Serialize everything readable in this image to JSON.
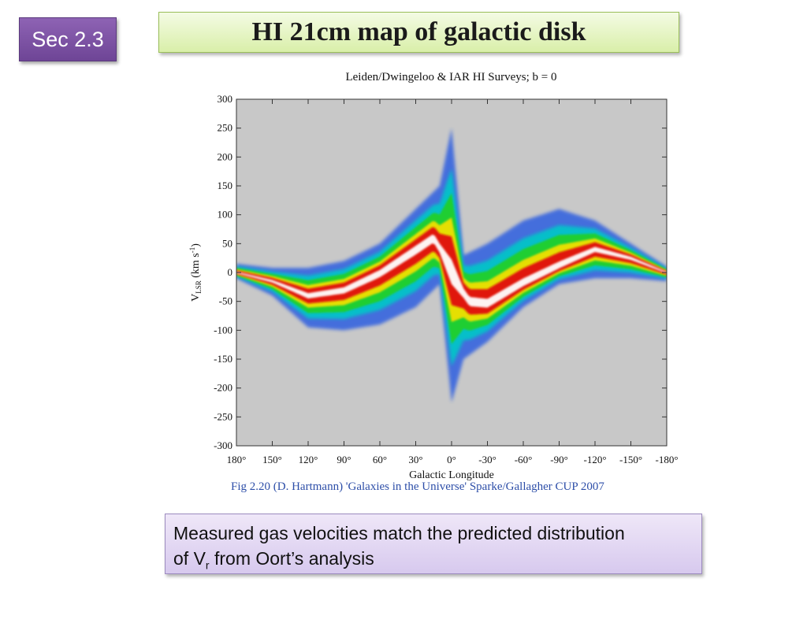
{
  "slide": {
    "section": "Sec 2.3",
    "title": "HI 21cm map of galactic disk",
    "caption": "Fig 2.20 (D. Hartmann) 'Galaxies in the Universe' Sparke/Gallagher CUP 2007",
    "note_line1": "Measured gas velocities match the predicted distribution",
    "note_line2_pre": "of V",
    "note_line2_sub": "r",
    "note_line2_post": " from Oort’s analysis"
  },
  "chart_data": {
    "type": "heatmap",
    "title": "Leiden/Dwingeloo & IAR HI Surveys;  b = 0",
    "xlabel": "Galactic Longitude",
    "ylabel_main": "V",
    "ylabel_sub": "LSR",
    "ylabel_unit": " (km s",
    "ylabel_unit_sup": "-1",
    "ylabel_unit_end": ")",
    "xlim": [
      180,
      -180
    ],
    "ylim": [
      -300,
      300
    ],
    "x_ticks": [
      180,
      150,
      120,
      90,
      60,
      30,
      0,
      -30,
      -60,
      -90,
      -120,
      -150,
      -180
    ],
    "x_tick_labels": [
      "180°",
      "150°",
      "120°",
      "90°",
      "60°",
      "30°",
      "0°",
      "-30°",
      "-60°",
      "-90°",
      "-120°",
      "-150°",
      "-180°"
    ],
    "y_ticks": [
      300,
      250,
      200,
      150,
      100,
      50,
      0,
      -50,
      -100,
      -150,
      -200,
      -250,
      -300
    ],
    "y_tick_labels": [
      "300",
      "250",
      "200",
      "150",
      "100",
      "50",
      "0",
      "-50",
      "-100",
      "-150",
      "-200",
      "-250",
      "-300"
    ],
    "background_color": "#c8c8c8",
    "colors": {
      "low": "#2f5fe0",
      "mid_low": "#00c8c8",
      "mid": "#20d020",
      "mid_high": "#f0e000",
      "high": "#e01010",
      "peak": "#ffffff"
    },
    "emission_envelope": [
      {
        "l": 180,
        "v_min": -10,
        "v_max": 15
      },
      {
        "l": 150,
        "v_min": -40,
        "v_max": 8
      },
      {
        "l": 120,
        "v_min": -95,
        "v_max": 8
      },
      {
        "l": 90,
        "v_min": -100,
        "v_max": 20
      },
      {
        "l": 60,
        "v_min": -90,
        "v_max": 50
      },
      {
        "l": 30,
        "v_min": -60,
        "v_max": 110
      },
      {
        "l": 10,
        "v_min": -20,
        "v_max": 150
      },
      {
        "l": 0,
        "v_min": -225,
        "v_max": 250
      },
      {
        "l": -10,
        "v_min": -150,
        "v_max": 30
      },
      {
        "l": -30,
        "v_min": -120,
        "v_max": 50
      },
      {
        "l": -60,
        "v_min": -60,
        "v_max": 90
      },
      {
        "l": -90,
        "v_min": -20,
        "v_max": 110
      },
      {
        "l": -120,
        "v_min": -10,
        "v_max": 90
      },
      {
        "l": -150,
        "v_min": -10,
        "v_max": 50
      },
      {
        "l": -180,
        "v_min": -15,
        "v_max": 10
      }
    ],
    "ridge": [
      {
        "l": 180,
        "v": 0
      },
      {
        "l": 150,
        "v": -15
      },
      {
        "l": 120,
        "v": -40
      },
      {
        "l": 90,
        "v": -30
      },
      {
        "l": 60,
        "v": 0
      },
      {
        "l": 30,
        "v": 40
      },
      {
        "l": 15,
        "v": 60
      },
      {
        "l": 0,
        "v": 0
      },
      {
        "l": -15,
        "v": -50
      },
      {
        "l": -30,
        "v": -55
      },
      {
        "l": -60,
        "v": -20
      },
      {
        "l": -90,
        "v": 10
      },
      {
        "l": -120,
        "v": 40
      },
      {
        "l": -150,
        "v": 25
      },
      {
        "l": -180,
        "v": 0
      }
    ]
  }
}
